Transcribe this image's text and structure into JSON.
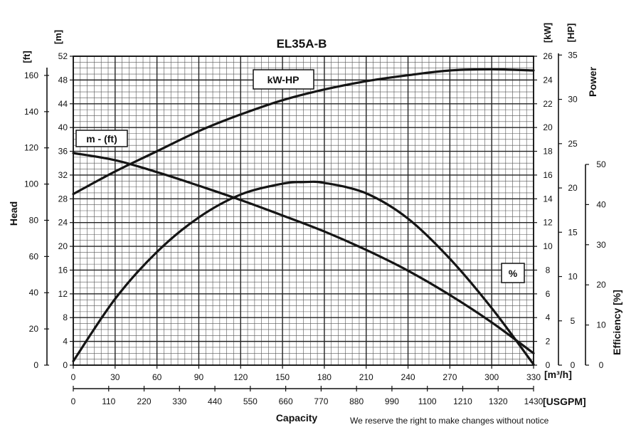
{
  "chart_data": {
    "type": "line",
    "title": "EL35A-B",
    "xlabel": "Capacity",
    "x_unit_m3h": "[m³/h]",
    "x_unit_usgpm": "[USGPM]",
    "x_ticks_m3h": [
      "0",
      "30",
      "60",
      "90",
      "120",
      "150",
      "180",
      "210",
      "240",
      "270",
      "300",
      "330"
    ],
    "x_ticks_usgpm": [
      "0",
      "110",
      "220",
      "330",
      "440",
      "550",
      "660",
      "770",
      "880",
      "990",
      "1100",
      "1210",
      "1320",
      "1430"
    ],
    "xlim_m3h": [
      0,
      330
    ],
    "head_axis": {
      "label": "Head",
      "unit_m": "[m]",
      "unit_ft": "[ft]",
      "ticks_m": [
        "0",
        "4",
        "8",
        "12",
        "16",
        "20",
        "24",
        "28",
        "32",
        "36",
        "40",
        "44",
        "48",
        "52"
      ],
      "ticks_ft": [
        "0",
        "20",
        "40",
        "60",
        "80",
        "100",
        "120",
        "140",
        "160"
      ],
      "ylim_m": [
        0,
        52
      ]
    },
    "power_axis": {
      "label": "Power",
      "unit_kw": "[kW]",
      "unit_hp": "[HP]",
      "ticks_kw": [
        "0",
        "2",
        "4",
        "6",
        "8",
        "10",
        "12",
        "14",
        "16",
        "18",
        "20",
        "22",
        "24",
        "26"
      ],
      "ticks_hp": [
        "0",
        "5",
        "10",
        "15",
        "20",
        "25",
        "30",
        "35"
      ],
      "ylim_kw": [
        0,
        26
      ]
    },
    "efficiency_axis": {
      "label": "Efficiency [%]",
      "ticks": [
        "0",
        "10",
        "20",
        "30",
        "40",
        "50"
      ],
      "ylim": [
        0,
        50
      ]
    },
    "grid": true,
    "annotation": "We reserve the right to make changes without notice",
    "series": [
      {
        "name": "m - (ft)",
        "axis": "head_m",
        "x": [
          0,
          30,
          60,
          90,
          120,
          150,
          180,
          210,
          240,
          270,
          300,
          330
        ],
        "y": [
          35.7,
          34.5,
          32.5,
          30.2,
          27.8,
          25.2,
          22.5,
          19.4,
          15.9,
          11.8,
          7.2,
          2.0
        ]
      },
      {
        "name": "kW-HP",
        "axis": "power_kw",
        "x": [
          0,
          30,
          60,
          90,
          120,
          150,
          180,
          210,
          240,
          270,
          300,
          330
        ],
        "y": [
          14.4,
          16.3,
          18.0,
          19.7,
          21.1,
          22.3,
          23.2,
          23.9,
          24.4,
          24.8,
          24.9,
          24.8
        ]
      },
      {
        "name": "%",
        "axis": "efficiency",
        "x": [
          0,
          30,
          60,
          90,
          120,
          150,
          165,
          180,
          210,
          240,
          270,
          300,
          330
        ],
        "y": [
          1.0,
          16.5,
          28.2,
          36.8,
          42.5,
          45.2,
          45.6,
          45.4,
          42.8,
          36.5,
          26.5,
          14.2,
          0.2
        ]
      }
    ]
  }
}
